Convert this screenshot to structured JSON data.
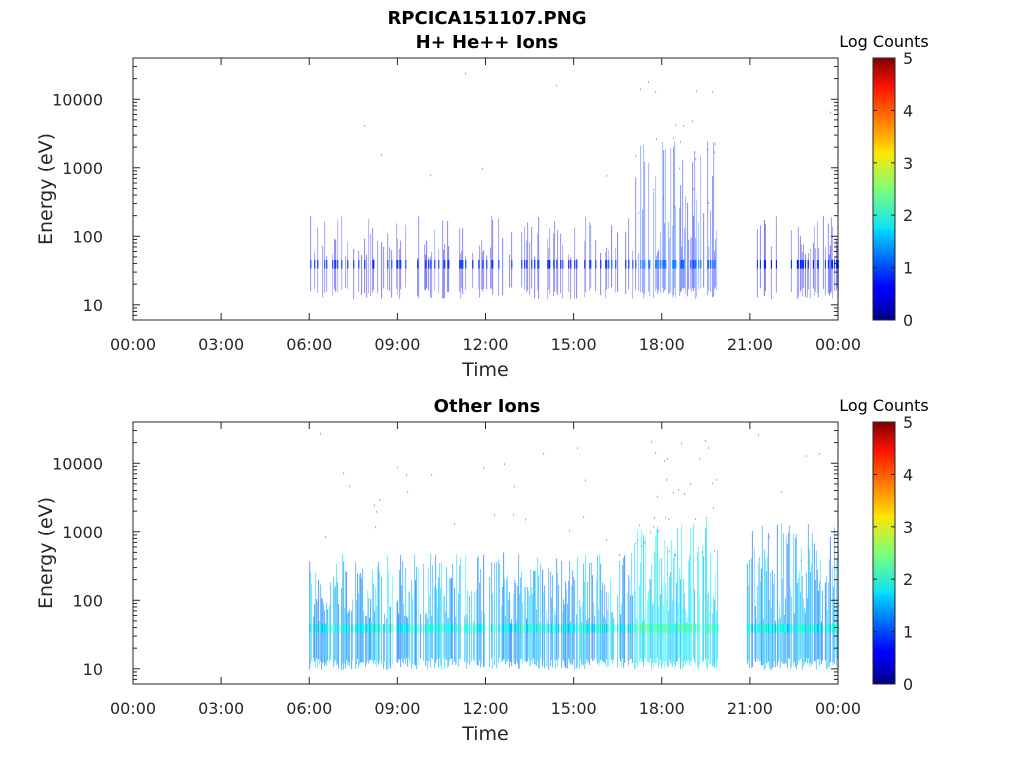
{
  "chart_data": [
    {
      "type": "heatmap",
      "title": "RPCICA151107.PNG",
      "subtitle": "H+ He++ Ions",
      "xlabel": "Time",
      "ylabel": "Energy (eV)",
      "x_ticks": [
        "00:00",
        "03:00",
        "06:00",
        "09:00",
        "12:00",
        "15:00",
        "18:00",
        "21:00",
        "00:00"
      ],
      "xlim_hours": [
        0,
        24
      ],
      "y_scale": "log",
      "ylim": [
        6,
        40000
      ],
      "y_ticks": [
        10,
        100,
        1000,
        10000
      ],
      "y_tick_labels": [
        "10",
        "100",
        "1000",
        "10000"
      ],
      "colorbar": {
        "label": "Log Counts",
        "min": 0,
        "max": 5,
        "ticks": [
          "0",
          "1",
          "2",
          "3",
          "4",
          "5"
        ],
        "colormap": "jet"
      },
      "data_coverage_hours": [
        [
          6.0,
          19.9
        ],
        [
          20.9,
          24.0
        ]
      ],
      "description_levels": {
        "baseline_energy_band_eV": [
          15,
          45
        ],
        "typical_log_counts": 0.3,
        "peak_activity_hours": [
          17.0,
          19.9
        ]
      }
    },
    {
      "type": "heatmap",
      "title": "Other Ions",
      "xlabel": "Time",
      "ylabel": "Energy (eV)",
      "x_ticks": [
        "00:00",
        "03:00",
        "06:00",
        "09:00",
        "12:00",
        "15:00",
        "18:00",
        "21:00",
        "00:00"
      ],
      "xlim_hours": [
        0,
        24
      ],
      "y_scale": "log",
      "ylim": [
        6,
        40000
      ],
      "y_ticks": [
        10,
        100,
        1000,
        10000
      ],
      "y_tick_labels": [
        "10",
        "100",
        "1000",
        "10000"
      ],
      "colorbar": {
        "label": "Log Counts",
        "min": 0,
        "max": 5,
        "ticks": [
          "0",
          "1",
          "2",
          "3",
          "4",
          "5"
        ],
        "colormap": "jet"
      },
      "data_coverage_hours": [
        [
          6.0,
          19.9
        ],
        [
          20.9,
          24.0
        ]
      ],
      "description_levels": {
        "baseline_energy_band_eV": [
          12,
          45
        ],
        "typical_log_counts": 1.0,
        "peak_activity_hours": [
          17.0,
          19.9
        ]
      }
    }
  ]
}
